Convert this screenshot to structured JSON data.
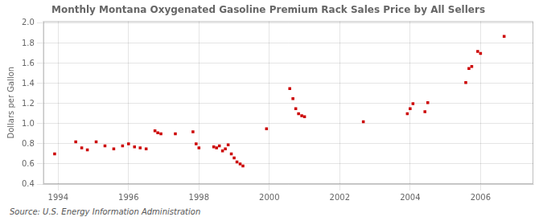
{
  "chart_data": {
    "type": "scatter",
    "title": "Monthly Montana Oxygenated Gasoline Premium Rack Sales Price by All Sellers",
    "ylabel": "Dollars per Gallon",
    "annotation": "Source: U.S. Energy Information Administration",
    "color": "#CC0000",
    "marker": "square",
    "grid": true,
    "xlim": [
      1993.58,
      2007.5
    ],
    "ylim": [
      0.4,
      2.02
    ],
    "xticks": [
      1994,
      1996,
      1998,
      2000,
      2002,
      2004,
      2006
    ],
    "yticks": [
      0.4,
      0.6,
      0.8,
      {
        "value": 1.0,
        "label": "1.0"
      },
      1.2,
      1.4,
      1.6,
      1.8,
      {
        "value": 2.0,
        "label": "2.0"
      }
    ],
    "x": [
      1993.9,
      1994.5,
      1994.67,
      1994.83,
      1995.08,
      1995.33,
      1995.58,
      1995.83,
      1996.0,
      1996.17,
      1996.33,
      1996.5,
      1996.75,
      1996.83,
      1996.92,
      1997.33,
      1997.83,
      1997.92,
      1998.0,
      1998.42,
      1998.5,
      1998.58,
      1998.67,
      1998.75,
      1998.83,
      1998.92,
      1999.0,
      1999.08,
      1999.17,
      1999.25,
      1999.92,
      2000.58,
      2000.67,
      2000.75,
      2000.83,
      2000.92,
      2001.0,
      2002.67,
      2003.92,
      2004.0,
      2004.08,
      2004.42,
      2004.5,
      2005.58,
      2005.67,
      2005.75,
      2005.92,
      2006.0,
      2006.67
    ],
    "values": [
      0.7,
      0.82,
      0.76,
      0.74,
      0.82,
      0.78,
      0.75,
      0.78,
      0.8,
      0.77,
      0.76,
      0.75,
      0.93,
      0.91,
      0.9,
      0.9,
      0.92,
      0.8,
      0.76,
      0.77,
      0.76,
      0.78,
      0.73,
      0.75,
      0.79,
      0.7,
      0.66,
      0.62,
      0.6,
      0.58,
      0.95,
      1.35,
      1.25,
      1.15,
      1.1,
      1.08,
      1.07,
      1.02,
      1.1,
      1.15,
      1.2,
      1.12,
      1.21,
      1.41,
      1.55,
      1.57,
      1.72,
      1.7,
      1.87
    ]
  }
}
